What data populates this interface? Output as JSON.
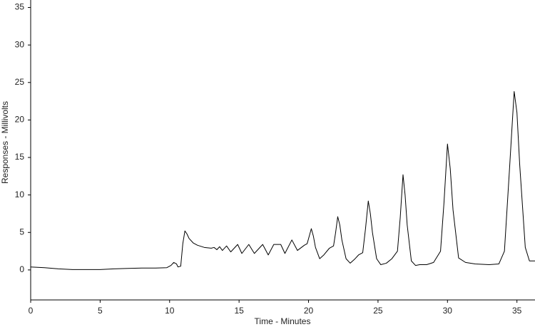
{
  "chart_data": {
    "type": "line",
    "xlabel": "Time - Minutes",
    "ylabel": "Responses - Millivolts",
    "color": "#000000",
    "xlim": [
      0,
      36.3
    ],
    "ylim": [
      -4,
      36
    ],
    "xticks": [
      0,
      5,
      10,
      15,
      20,
      25,
      30,
      35
    ],
    "yticks": [
      0,
      5,
      10,
      15,
      20,
      25,
      30,
      35
    ],
    "x": [
      0,
      1,
      2,
      3,
      4,
      5,
      6,
      7,
      8,
      9,
      9.8,
      10.1,
      10.3,
      10.5,
      10.6,
      10.8,
      10.95,
      11.1,
      11.25,
      11.4,
      11.7,
      12,
      12.5,
      13,
      13.2,
      13.4,
      13.6,
      13.8,
      14.1,
      14.4,
      14.9,
      15.2,
      15.7,
      16.1,
      16.7,
      17.1,
      17.5,
      18.0,
      18.3,
      18.8,
      19.2,
      19.7,
      19.9,
      20.05,
      20.2,
      20.35,
      20.5,
      20.8,
      21.1,
      21.5,
      21.8,
      21.95,
      22.1,
      22.25,
      22.4,
      22.7,
      23.0,
      23.3,
      23.6,
      23.9,
      24.1,
      24.3,
      24.45,
      24.6,
      24.9,
      25.2,
      25.6,
      26.0,
      26.4,
      26.6,
      26.8,
      26.95,
      27.1,
      27.4,
      27.7,
      28.0,
      28.5,
      29.0,
      29.5,
      29.75,
      30.0,
      30.2,
      30.4,
      30.8,
      31.3,
      32.0,
      33.0,
      33.7,
      34.1,
      34.45,
      34.8,
      35.0,
      35.2,
      35.6,
      35.9,
      36.3
    ],
    "values": [
      0.4,
      0.3,
      0.15,
      0.05,
      0.05,
      0.05,
      0.15,
      0.2,
      0.25,
      0.25,
      0.3,
      0.6,
      1.0,
      0.8,
      0.4,
      0.5,
      3.5,
      5.2,
      4.8,
      4.2,
      3.6,
      3.3,
      3.0,
      2.9,
      3.0,
      2.7,
      3.1,
      2.6,
      3.2,
      2.4,
      3.4,
      2.2,
      3.4,
      2.2,
      3.4,
      2.0,
      3.4,
      3.4,
      2.2,
      4.0,
      2.6,
      3.3,
      3.5,
      4.5,
      5.5,
      4.5,
      3.0,
      1.5,
      2.0,
      2.9,
      3.2,
      5.0,
      7.1,
      6.0,
      4.0,
      1.5,
      0.9,
      1.4,
      2.0,
      2.3,
      5.5,
      9.2,
      7.5,
      5.0,
      1.5,
      0.7,
      0.9,
      1.5,
      2.5,
      7.0,
      12.7,
      10.0,
      6.0,
      1.2,
      0.6,
      0.7,
      0.7,
      1.0,
      2.5,
      9.0,
      16.8,
      13.5,
      8.0,
      1.6,
      1.0,
      0.8,
      0.7,
      0.8,
      2.5,
      13.0,
      23.8,
      21.0,
      14.0,
      3.0,
      1.2,
      1.2
    ]
  }
}
